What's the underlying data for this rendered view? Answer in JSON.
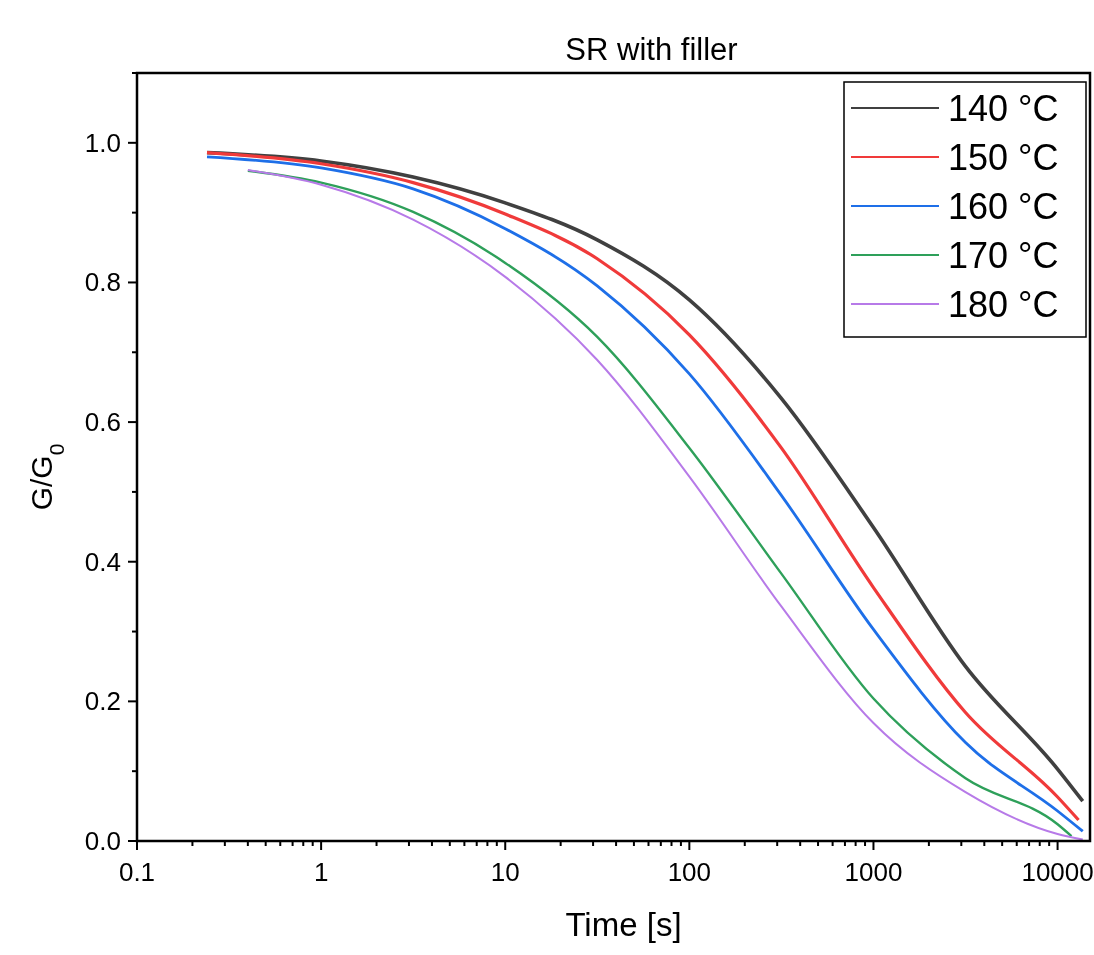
{
  "chart_data": {
    "type": "line",
    "title": "SR with filler",
    "xlabel": "Time [s]",
    "ylabel": "G/G$_{0}$",
    "log": "x",
    "xlim": [
      0.1,
      15000
    ],
    "ylim": [
      0,
      1.1
    ],
    "xticks": [
      0.1,
      {
        "value": 0.2,
        "label": null
      },
      {
        "value": 0.3,
        "label": null
      },
      {
        "value": 0.4,
        "label": null
      },
      {
        "value": 0.5,
        "label": null
      },
      {
        "value": 0.6,
        "label": null
      },
      {
        "value": 0.7,
        "label": null
      },
      {
        "value": 0.8,
        "label": null
      },
      {
        "value": 0.9,
        "label": null
      },
      1,
      {
        "value": 2,
        "label": null
      },
      {
        "value": 3,
        "label": null
      },
      {
        "value": 4,
        "label": null
      },
      {
        "value": 5,
        "label": null
      },
      {
        "value": 6,
        "label": null
      },
      {
        "value": 7,
        "label": null
      },
      {
        "value": 8,
        "label": null
      },
      {
        "value": 9,
        "label": null
      },
      10,
      {
        "value": 20,
        "label": null
      },
      {
        "value": 30,
        "label": null
      },
      {
        "value": 40,
        "label": null
      },
      {
        "value": 50,
        "label": null
      },
      {
        "value": 60,
        "label": null
      },
      {
        "value": 70,
        "label": null
      },
      {
        "value": 80,
        "label": null
      },
      {
        "value": 90,
        "label": null
      },
      100,
      {
        "value": 200,
        "label": null
      },
      {
        "value": 300,
        "label": null
      },
      {
        "value": 400,
        "label": null
      },
      {
        "value": 500,
        "label": null
      },
      {
        "value": 600,
        "label": null
      },
      {
        "value": 700,
        "label": null
      },
      {
        "value": 800,
        "label": null
      },
      {
        "value": 900,
        "label": null
      },
      1000,
      {
        "value": 2000,
        "label": null
      },
      {
        "value": 3000,
        "label": null
      },
      {
        "value": 4000,
        "label": null
      },
      {
        "value": 5000,
        "label": null
      },
      {
        "value": 6000,
        "label": null
      },
      {
        "value": 7000,
        "label": null
      },
      {
        "value": 8000,
        "label": null
      },
      {
        "value": 9000,
        "label": null
      },
      10000
    ],
    "yticks": [
      {
        "value": 0,
        "label": "0.0"
      },
      {
        "value": 0.1,
        "label": null
      },
      0.2,
      {
        "value": 0.3,
        "label": null
      },
      0.4,
      {
        "value": 0.5,
        "label": null
      },
      0.6,
      {
        "value": 0.7,
        "label": null
      },
      0.8,
      {
        "value": 0.9,
        "label": null
      },
      {
        "value": 1,
        "label": "1.0"
      },
      {
        "value": 1.1,
        "label": null
      }
    ],
    "legend": "top right",
    "grid": false,
    "line_style": "solid",
    "marker": "none",
    "series": [
      {
        "name": "140 °C",
        "color": "#404040",
        "x": [
          0.24,
          1,
          3.16,
          10,
          31.6,
          100,
          316,
          1000,
          3162,
          10000,
          13700
        ],
        "values": [
          0.986,
          0.974,
          0.951,
          0.914,
          0.861,
          0.775,
          0.634,
          0.449,
          0.25,
          0.103,
          0.057
        ]
      },
      {
        "name": "150 °C",
        "color": "#f03a3a",
        "x": [
          0.24,
          1,
          3.16,
          10,
          31.6,
          100,
          316,
          1000,
          3162,
          10000,
          13000
        ],
        "values": [
          0.986,
          0.97,
          0.943,
          0.898,
          0.834,
          0.725,
          0.563,
          0.363,
          0.184,
          0.063,
          0.03
        ]
      },
      {
        "name": "160 °C",
        "color": "#1e6fe8",
        "x": [
          0.24,
          1,
          3.16,
          10,
          31.6,
          100,
          316,
          1000,
          3162,
          10000,
          13700
        ],
        "values": [
          0.98,
          0.964,
          0.934,
          0.877,
          0.795,
          0.669,
          0.495,
          0.303,
          0.141,
          0.043,
          0.014
        ]
      },
      {
        "name": "170 °C",
        "color": "#2ea05a",
        "x": [
          0.4,
          1,
          3.16,
          10,
          31.6,
          100,
          316,
          1000,
          3162,
          10000,
          11900
        ],
        "values": [
          0.96,
          0.943,
          0.901,
          0.828,
          0.722,
          0.563,
          0.383,
          0.204,
          0.09,
          0.024,
          0.007
        ]
      },
      {
        "name": "180 °C",
        "color": "#b77ae8",
        "x": [
          0.4,
          1,
          3.16,
          10,
          31.6,
          100,
          316,
          1000,
          3162,
          10000,
          13700
        ],
        "values": [
          0.961,
          0.94,
          0.89,
          0.808,
          0.689,
          0.522,
          0.336,
          0.169,
          0.07,
          0.01,
          0.002
        ]
      }
    ]
  }
}
